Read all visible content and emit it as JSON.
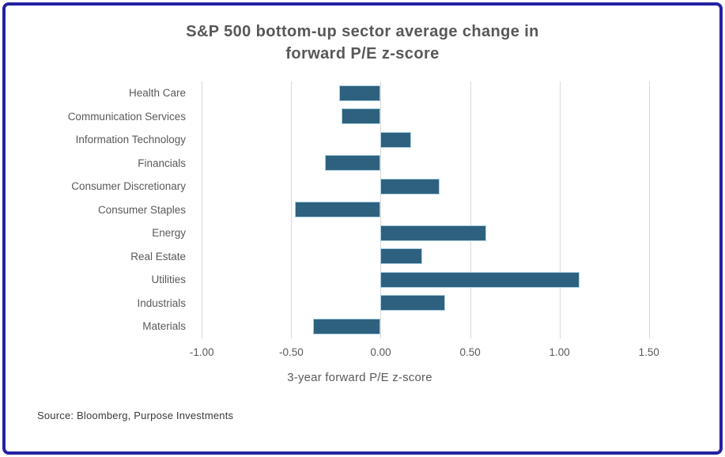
{
  "chart_data": {
    "type": "bar",
    "orientation": "horizontal",
    "title": "S&P 500 bottom-up sector average change in forward P/E z-score",
    "title_lines": [
      "S&P 500 bottom-up sector average change in",
      "forward P/E z-score"
    ],
    "categories": [
      "Health Care",
      "Communication Services",
      "Information Technology",
      "Financials",
      "Consumer Discretionary",
      "Consumer Staples",
      "Energy",
      "Real Estate",
      "Utilities",
      "Industrials",
      "Materials"
    ],
    "values": [
      -0.23,
      -0.22,
      0.17,
      -0.31,
      0.33,
      -0.48,
      0.59,
      0.23,
      1.11,
      0.36,
      -0.38
    ],
    "xlabel": "3-year forward P/E z-score",
    "x_ticks": [
      -1.0,
      -0.5,
      0.0,
      0.5,
      1.0,
      1.5
    ],
    "x_tick_labels": [
      "-1.00",
      "-0.50",
      "0.00",
      "0.50",
      "1.00",
      "1.50"
    ],
    "xlim": [
      -1.05,
      1.7
    ],
    "grid": "vertical",
    "legend": "none",
    "colors": {
      "bar_fill": "#2d617f",
      "bar_border": "#a9cfe0",
      "gridline": "#d9d9d9",
      "title_text": "#57585a",
      "axis_text": "#595959",
      "frame_border": "#2421a3"
    }
  },
  "source": {
    "label": "Source: Bloomberg, Purpose Investments"
  }
}
